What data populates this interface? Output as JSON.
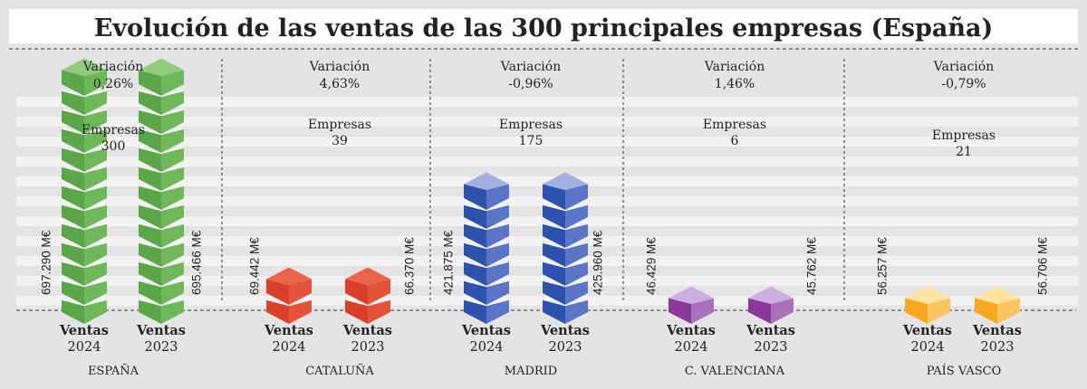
{
  "chart_data": {
    "type": "bar",
    "title": "Evolución de las ventas de las 300 principales empresas (España)",
    "unit": "M€",
    "variation_label": "Variación",
    "companies_label": "Empresas",
    "bar_label": "Ventas",
    "series_years": [
      "2024",
      "2023"
    ],
    "groups": [
      {
        "region": "ESPAÑA",
        "variation": "0,26%",
        "companies": "300",
        "values": [
          697290,
          695466
        ],
        "value_labels": [
          "697.290 M€",
          "695.466 M€"
        ],
        "blocks": [
          13,
          13
        ],
        "colors": {
          "top": "#93cc7e",
          "left": "#5ba648",
          "right": "#6fb85a"
        }
      },
      {
        "region": "CATALUÑA",
        "variation": "4,63%",
        "companies": "39",
        "values": [
          69442,
          66370
        ],
        "value_labels": [
          "69.442 M€",
          "66.370 M€"
        ],
        "blocks": [
          2,
          2
        ],
        "colors": {
          "top": "#ea6449",
          "left": "#d8402a",
          "right": "#e35239"
        }
      },
      {
        "region": "MADRID",
        "variation": "-0,96%",
        "companies": "175",
        "values": [
          421875,
          425960
        ],
        "value_labels": [
          "421.875 M€",
          "425.960 M€"
        ],
        "blocks": [
          7,
          7
        ],
        "colors": {
          "top": "#a3afdf",
          "left": "#2c52ad",
          "right": "#5a74c6"
        }
      },
      {
        "region": "C. VALENCIANA",
        "variation": "1,46%",
        "companies": "6",
        "values": [
          46429,
          45762
        ],
        "value_labels": [
          "46.429 M€",
          "45.762 M€"
        ],
        "blocks": [
          1,
          1
        ],
        "colors": {
          "top": "#cbb0df",
          "left": "#8a3a99",
          "right": "#a872bb"
        }
      },
      {
        "region": "PAÍS VASCO",
        "variation": "-0,79%",
        "companies": "21",
        "values": [
          56257,
          56706
        ],
        "value_labels": [
          "56.257 M€",
          "56.706 M€"
        ],
        "blocks": [
          1,
          1
        ],
        "colors": {
          "top": "#fde4a2",
          "left": "#f6a91f",
          "right": "#fbc45e"
        }
      }
    ],
    "grid": "horizontal stripes"
  }
}
